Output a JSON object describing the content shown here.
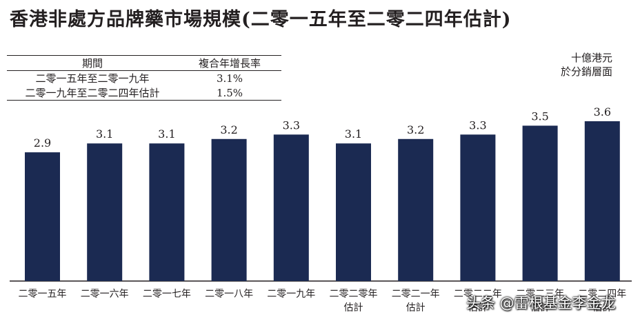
{
  "title": "香港非處方品牌藥市場規模(二零一五年至二零二四年估計)",
  "cagr_table": {
    "headers": [
      "期間",
      "複合年增長率"
    ],
    "rows": [
      {
        "period": "二零一五年至二零一九年",
        "rate": "3.1%"
      },
      {
        "period": "二零一九年至二零二四年估計",
        "rate": "1.5%"
      }
    ]
  },
  "unit_label": [
    "十億港元",
    "於分銷層面"
  ],
  "chart_data": {
    "type": "bar",
    "title": "香港非處方品牌藥市場規模(二零一五年至二零二四年估計)",
    "ylabel": "十億港元 於分銷層面",
    "xlabel": "",
    "categories": [
      [
        "二零一五年"
      ],
      [
        "二零一六年"
      ],
      [
        "二零一七年"
      ],
      [
        "二零一八年"
      ],
      [
        "二零一九年"
      ],
      [
        "二零二零年",
        "估計"
      ],
      [
        "二零二一年",
        "估計"
      ],
      [
        "二零二二年",
        "估計"
      ],
      [
        "二零二三年",
        "估計"
      ],
      [
        "二零二四年",
        "估計"
      ]
    ],
    "values": [
      2.9,
      3.1,
      3.1,
      3.2,
      3.3,
      3.1,
      3.2,
      3.3,
      3.5,
      3.6
    ],
    "value_labels": [
      "2.9",
      "3.1",
      "3.1",
      "3.2",
      "3.3",
      "3.1",
      "3.2",
      "3.3",
      "3.5",
      "3.6"
    ],
    "ylim": [
      0,
      3.6
    ],
    "grid": false,
    "legend": "none",
    "bar_color": "#1b2a52"
  },
  "watermark": "头条 @雷根基金李金龙"
}
